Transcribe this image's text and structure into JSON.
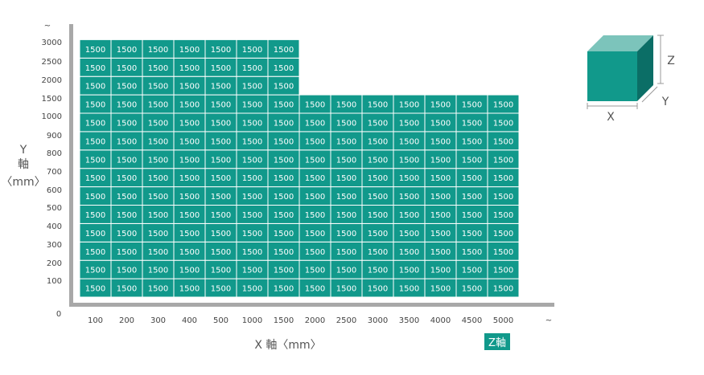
{
  "chart_data": {
    "type": "heatmap",
    "title": "",
    "xlabel": "X 軸〈mm〉",
    "ylabel": [
      "Y",
      "軸",
      "〈mm〉"
    ],
    "x_categories": [
      "100",
      "200",
      "300",
      "400",
      "500",
      "1000",
      "1500",
      "2000",
      "2500",
      "3000",
      "3500",
      "4000",
      "4500",
      "5000"
    ],
    "x_overflow_marker": "~",
    "y_categories": [
      "100",
      "200",
      "300",
      "400",
      "500",
      "600",
      "700",
      "800",
      "900",
      "1000",
      "1500",
      "2000",
      "2500",
      "3000"
    ],
    "y_overflow_marker": "~",
    "y_zero_label": "0",
    "cell_value": "1500",
    "rows": [
      {
        "y": "100",
        "max_x": "5000"
      },
      {
        "y": "200",
        "max_x": "5000"
      },
      {
        "y": "300",
        "max_x": "5000"
      },
      {
        "y": "400",
        "max_x": "5000"
      },
      {
        "y": "500",
        "max_x": "5000"
      },
      {
        "y": "600",
        "max_x": "5000"
      },
      {
        "y": "700",
        "max_x": "5000"
      },
      {
        "y": "800",
        "max_x": "5000"
      },
      {
        "y": "900",
        "max_x": "5000"
      },
      {
        "y": "1000",
        "max_x": "5000"
      },
      {
        "y": "1500",
        "max_x": "5000"
      },
      {
        "y": "2000",
        "max_x": "1500"
      },
      {
        "y": "2500",
        "max_x": "1500"
      },
      {
        "y": "3000",
        "max_x": "1500"
      }
    ],
    "value_label": "Z軸",
    "grid": false,
    "colors": {
      "cell": "#11998b",
      "cell_border": "#ffffff",
      "axis": "#a8a8a8",
      "badge": "#11998b",
      "cube_front": "#11998b",
      "cube_top": "#7cc4bb",
      "cube_side": "#0b6e66",
      "dim_line": "#999999"
    }
  },
  "legend": {
    "x_label": "X",
    "y_label": "Y",
    "z_label": "Z"
  }
}
